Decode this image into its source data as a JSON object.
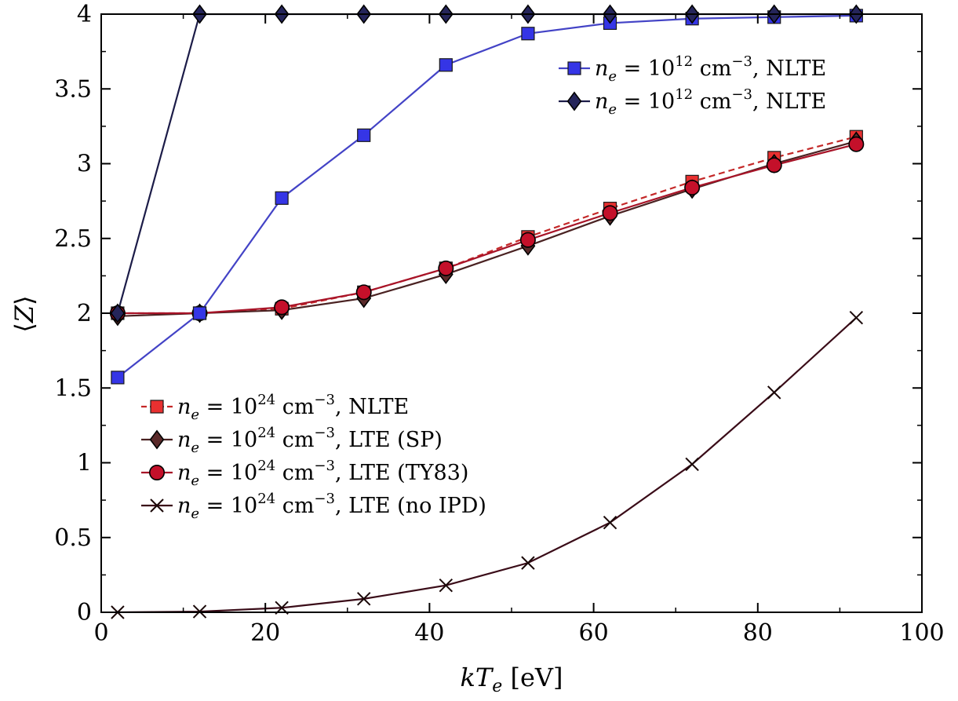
{
  "chart_data": {
    "type": "line",
    "xlabel": "kT_e [eV]",
    "ylabel": "⟨Z⟩",
    "xlim": [
      0,
      100
    ],
    "ylim": [
      0,
      4
    ],
    "x_ticks": [
      "0",
      "20",
      "40",
      "60",
      "80",
      "100"
    ],
    "y_ticks": [
      "0",
      "0.5",
      "1",
      "1.5",
      "2",
      "2.5",
      "3",
      "3.5",
      "4"
    ],
    "x": [
      2,
      12,
      22,
      32,
      42,
      52,
      62,
      72,
      82,
      92
    ],
    "series": [
      {
        "name": "n_e = 10^12 cm^-3, NLTE",
        "legend_group": "upper",
        "legend": {
          "var": "n",
          "sub": "e",
          "eq": " = 10",
          "exp": "12",
          "unit": " cm",
          "unit_exp": "−3",
          "suffix": ", NLTE"
        },
        "values": [
          1.57,
          2.0,
          2.77,
          3.19,
          3.66,
          3.87,
          3.94,
          3.97,
          3.98,
          3.99
        ],
        "color": "#3535e6",
        "line_color": "#4343c6",
        "marker": "square",
        "dash": false
      },
      {
        "name": "n_e = 10^12 cm^-3, NLTE",
        "legend_group": "upper",
        "legend": {
          "var": "n",
          "sub": "e",
          "eq": " = 10",
          "exp": "12",
          "unit": " cm",
          "unit_exp": "−3",
          "suffix": ", NLTE"
        },
        "values": [
          2.0,
          4.0,
          4.0,
          4.0,
          4.0,
          4.0,
          4.0,
          4.0,
          4.0,
          4.0
        ],
        "color": "#25255a",
        "line_color": "#1c1c48",
        "marker": "diamond",
        "dash": false
      },
      {
        "name": "n_e = 10^24 cm^-3, NLTE",
        "legend_group": "lower",
        "legend": {
          "var": "n",
          "sub": "e",
          "eq": " = 10",
          "exp": "24",
          "unit": " cm",
          "unit_exp": "−3",
          "suffix": ", NLTE"
        },
        "values": [
          2.0,
          2.0,
          2.03,
          2.14,
          2.3,
          2.51,
          2.7,
          2.88,
          3.04,
          3.18
        ],
        "color": "#e83030",
        "line_color": "#c42828",
        "marker": "square",
        "dash": true
      },
      {
        "name": "n_e = 10^24 cm^-3, LTE (SP)",
        "legend_group": "lower",
        "legend": {
          "var": "n",
          "sub": "e",
          "eq": " = 10",
          "exp": "24",
          "unit": " cm",
          "unit_exp": "−3",
          "suffix": ", LTE (SP)"
        },
        "values": [
          1.98,
          2.0,
          2.02,
          2.1,
          2.26,
          2.45,
          2.65,
          2.83,
          3.0,
          3.15
        ],
        "color": "#5a2a2a",
        "line_color": "#4a2222",
        "marker": "diamond",
        "dash": false
      },
      {
        "name": "n_e = 10^24 cm^-3, LTE (TY83)",
        "legend_group": "lower",
        "legend": {
          "var": "n",
          "sub": "e",
          "eq": " = 10",
          "exp": "24",
          "unit": " cm",
          "unit_exp": "−3",
          "suffix": ", LTE (TY83)"
        },
        "values": [
          2.0,
          2.0,
          2.04,
          2.14,
          2.3,
          2.49,
          2.67,
          2.84,
          2.99,
          3.13
        ],
        "color": "#c4102a",
        "line_color": "#a81428",
        "marker": "circle",
        "dash": false
      },
      {
        "name": "n_e = 10^24 cm^-3, LTE (no IPD)",
        "legend_group": "lower",
        "legend": {
          "var": "n",
          "sub": "e",
          "eq": " = 10",
          "exp": "24",
          "unit": " cm",
          "unit_exp": "−3",
          "suffix": ", LTE (no IPD)"
        },
        "values": [
          0.0,
          0.005,
          0.03,
          0.09,
          0.18,
          0.33,
          0.6,
          0.99,
          1.47,
          1.97
        ],
        "color": "#1a0808",
        "line_color": "#3a0c18",
        "marker": "x",
        "dash": false
      }
    ],
    "legend_positions": {
      "upper": "top-right",
      "lower": "middle-left"
    }
  }
}
